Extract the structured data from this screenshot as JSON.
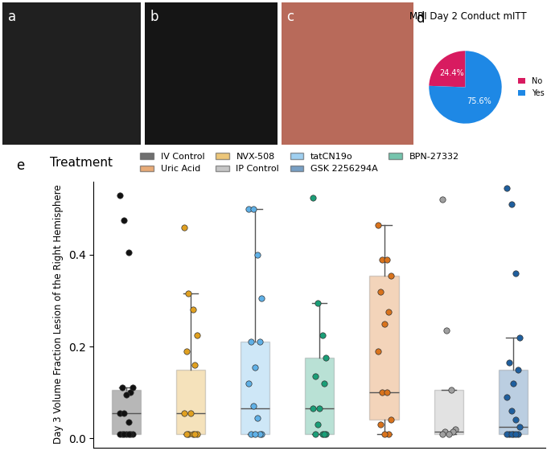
{
  "images": [
    {
      "panel": "a"
    },
    {
      "panel": "b"
    },
    {
      "panel": "c"
    }
  ],
  "chart_data": [
    {
      "type": "pie",
      "panel": "d",
      "title": "MRI Day 2 Conduct mITT",
      "categories": [
        "No",
        "Yes"
      ],
      "values": [
        24.4,
        75.6
      ],
      "value_labels": [
        "24.4%",
        "75.6%"
      ],
      "colors": [
        "#d81b60",
        "#1e88e5"
      ],
      "data_labels": true,
      "legend": "right"
    },
    {
      "type": "box",
      "panel": "e",
      "y_label": "Day 3 Volume Fraction Lesion of the Right Hemisphere",
      "legend_title": "Treatment",
      "legend": "top",
      "ylim": [
        -0.02,
        0.56
      ],
      "yticks": [
        {
          "value": 0.0,
          "label": "0.0"
        },
        {
          "value": 0.2,
          "label": "0.2"
        },
        {
          "value": 0.4,
          "label": "0.4"
        }
      ],
      "tick_labels": "y",
      "grid": false,
      "series": [
        {
          "name": "IV Control",
          "color": "#111111",
          "box": {
            "whislo": 0.01,
            "q1": 0.01,
            "med": 0.055,
            "q3": 0.105,
            "whishi": 0.11
          },
          "values": [
            0.53,
            0.475,
            0.405,
            0.11,
            0.11,
            0.1,
            0.095,
            0.055,
            0.055,
            0.035,
            0.01,
            0.01,
            0.01,
            0.01,
            0.01,
            0.01,
            0.01
          ]
        },
        {
          "name": "NVX-508",
          "color": "#e0a020",
          "box": {
            "whislo": 0.01,
            "q1": 0.01,
            "med": 0.055,
            "q3": 0.15,
            "whishi": 0.315
          },
          "values": [
            0.46,
            0.315,
            0.28,
            0.225,
            0.19,
            0.16,
            0.055,
            0.055,
            0.01,
            0.01,
            0.01,
            0.01,
            0.01
          ]
        },
        {
          "name": "tatCN19o",
          "color": "#5fb0e6",
          "box": {
            "whislo": 0.01,
            "q1": 0.01,
            "med": 0.065,
            "q3": 0.21,
            "whishi": 0.5
          },
          "values": [
            0.5,
            0.5,
            0.4,
            0.305,
            0.21,
            0.21,
            0.155,
            0.12,
            0.07,
            0.045,
            0.01,
            0.01,
            0.01,
            0.01
          ]
        },
        {
          "name": "BPN-27332",
          "color": "#1a9e77",
          "box": {
            "whislo": 0.01,
            "q1": 0.01,
            "med": 0.065,
            "q3": 0.175,
            "whishi": 0.295
          },
          "values": [
            0.525,
            0.295,
            0.225,
            0.175,
            0.135,
            0.12,
            0.065,
            0.065,
            0.03,
            0.01,
            0.01,
            0.01,
            0.01
          ]
        },
        {
          "name": "Uric Acid",
          "color": "#d9731c",
          "box": {
            "whislo": 0.01,
            "q1": 0.04,
            "med": 0.1,
            "q3": 0.355,
            "whishi": 0.465
          },
          "values": [
            0.465,
            0.39,
            0.39,
            0.355,
            0.32,
            0.275,
            0.25,
            0.19,
            0.1,
            0.1,
            0.04,
            0.03,
            0.01,
            0.01
          ]
        },
        {
          "name": "IP Control",
          "color": "#a0a0a0",
          "box": {
            "whislo": 0.01,
            "q1": 0.01,
            "med": 0.015,
            "q3": 0.105,
            "whishi": 0.105
          },
          "values": [
            0.52,
            0.235,
            0.105,
            0.02,
            0.015,
            0.015,
            0.01,
            0.01
          ]
        },
        {
          "name": "GSK 2256294A",
          "color": "#1f5f9e",
          "box": {
            "whislo": 0.01,
            "q1": 0.01,
            "med": 0.025,
            "q3": 0.15,
            "whishi": 0.22
          },
          "values": [
            0.545,
            0.51,
            0.36,
            0.22,
            0.165,
            0.15,
            0.12,
            0.09,
            0.06,
            0.04,
            0.025,
            0.01,
            0.01,
            0.01,
            0.01,
            0.01,
            0.01
          ]
        }
      ]
    }
  ]
}
